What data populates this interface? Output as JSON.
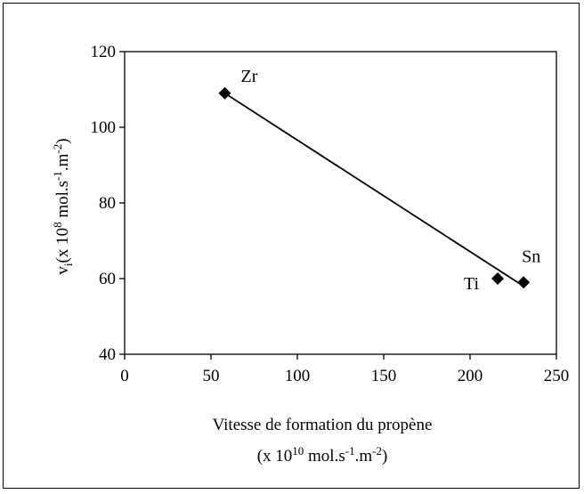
{
  "chart_data": {
    "type": "scatter",
    "title": "",
    "xlabel": {
      "line1": "Vitesse de formation du propène",
      "line2_prefix": "(x 10",
      "line2_exp1": "10",
      "line2_mid": " mol.s",
      "line2_exp2": "-1",
      "line2_mid2": ".m",
      "line2_exp3": "-2",
      "line2_suffix": ")"
    },
    "ylabel": {
      "v": "v",
      "sub": "i",
      "prefix": "(x 10",
      "exp1": "8",
      "mid": " mol.s",
      "exp2": "-1",
      "mid2": ".m",
      "exp3": "-2",
      "suffix": ")"
    },
    "xlim": [
      0,
      250
    ],
    "ylim": [
      40,
      120
    ],
    "xticks": [
      0,
      50,
      100,
      150,
      200,
      250
    ],
    "yticks": [
      40,
      60,
      80,
      100,
      120
    ],
    "grid": false,
    "marker": "diamond",
    "color": "#000000",
    "points": [
      {
        "label": "Zr",
        "x": 58,
        "y": 109
      },
      {
        "label": "Ti",
        "x": 216,
        "y": 60
      },
      {
        "label": "Sn",
        "x": 231,
        "y": 59
      }
    ],
    "trendline": {
      "x": [
        58,
        231
      ],
      "y": [
        109,
        58
      ]
    }
  }
}
